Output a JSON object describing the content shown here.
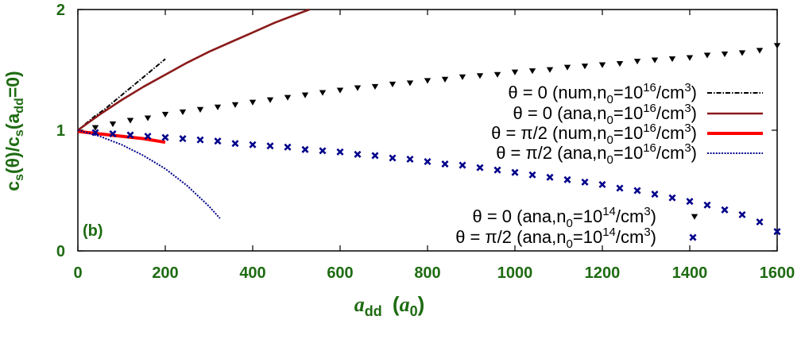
{
  "chart_data": {
    "type": "line",
    "panel_label": "(b)",
    "xlabel": {
      "main": "a",
      "sub": "dd",
      "unit_main": "a",
      "unit_sub": "0"
    },
    "ylabel": {
      "p1": "c",
      "s1": "s",
      "p2": "(θ)/c",
      "s2": "s",
      "p3": "(a",
      "s3": "dd",
      "p4": "=0)"
    },
    "xlim": [
      0,
      1600
    ],
    "ylim": [
      0,
      2
    ],
    "xticks": [
      0,
      200,
      400,
      600,
      800,
      1000,
      1200,
      1400,
      1600
    ],
    "yticks": [
      0,
      1,
      2
    ],
    "series": [
      {
        "name": "θ = 0 (num,n₀=10¹⁶/cm³)",
        "legend": {
          "pre": "θ = 0 (num,n",
          "sub": "0",
          "mid": "=10",
          "sup1": "16",
          "post": "/cm",
          "sup2": "3",
          "post2": ")"
        },
        "style": "dashdot",
        "color": "#000000",
        "x": [
          0,
          20,
          40,
          60,
          80,
          100,
          120,
          140,
          160,
          180,
          200
        ],
        "y": [
          1.0,
          1.06,
          1.12,
          1.17,
          1.23,
          1.29,
          1.35,
          1.41,
          1.47,
          1.53,
          1.59
        ]
      },
      {
        "name": "θ = 0 (ana,n₀=10¹⁶/cm³)",
        "legend": {
          "pre": "θ = 0 (ana,n",
          "sub": "0",
          "mid": "=10",
          "sup1": "16",
          "post": "/cm",
          "sup2": "3",
          "post2": ")"
        },
        "style": "solid",
        "color": "#8b1a1a",
        "x": [
          0,
          50,
          100,
          150,
          200,
          250,
          300,
          350,
          400,
          450,
          500,
          530
        ],
        "y": [
          1.0,
          1.13,
          1.25,
          1.36,
          1.46,
          1.56,
          1.65,
          1.73,
          1.81,
          1.89,
          1.96,
          2.0
        ]
      },
      {
        "name": "θ = π/2 (num,n₀=10¹⁶/cm³)",
        "legend": {
          "pre": "θ = π/2 (num,n",
          "sub": "0",
          "mid": "=10",
          "sup1": "16",
          "post": "/cm",
          "sup2": "3",
          "post2": ")"
        },
        "style": "thick",
        "color": "#ff0000",
        "x": [
          0,
          50,
          100,
          150,
          200
        ],
        "y": [
          0.99,
          0.97,
          0.95,
          0.93,
          0.9
        ]
      },
      {
        "name": "θ = π/2 (ana,n₀=10¹⁶/cm³)",
        "legend": {
          "pre": "θ = π/2 (ana,n",
          "sub": "0",
          "mid": "=10",
          "sup1": "16",
          "post": "/cm",
          "sup2": "3",
          "post2": ")"
        },
        "style": "dotted",
        "color": "#00008b",
        "x": [
          0,
          50,
          100,
          150,
          200,
          250,
          300,
          325
        ],
        "y": [
          1.0,
          0.95,
          0.88,
          0.79,
          0.68,
          0.54,
          0.37,
          0.27
        ]
      },
      {
        "name": "θ = 0 (ana,n₀=10¹⁴/cm³)",
        "legend": {
          "pre": "θ = 0 (ana,n",
          "sub": "0",
          "mid": "=10",
          "sup1": "14",
          "post": "/cm",
          "sup2": "3",
          "post2": ")"
        },
        "style": "triangles",
        "color": "#000000",
        "x": [
          40,
          80,
          120,
          160,
          200,
          240,
          280,
          320,
          360,
          400,
          440,
          480,
          520,
          560,
          600,
          640,
          680,
          720,
          760,
          800,
          840,
          880,
          920,
          960,
          1000,
          1040,
          1080,
          1120,
          1160,
          1200,
          1240,
          1280,
          1320,
          1360,
          1400,
          1440,
          1480,
          1520,
          1560,
          1600
        ],
        "y": [
          1.02,
          1.05,
          1.08,
          1.1,
          1.13,
          1.15,
          1.17,
          1.19,
          1.21,
          1.23,
          1.25,
          1.27,
          1.29,
          1.31,
          1.33,
          1.35,
          1.36,
          1.38,
          1.39,
          1.41,
          1.42,
          1.44,
          1.45,
          1.46,
          1.48,
          1.49,
          1.5,
          1.52,
          1.53,
          1.54,
          1.55,
          1.57,
          1.58,
          1.59,
          1.6,
          1.62,
          1.63,
          1.64,
          1.66,
          1.7
        ]
      },
      {
        "name": "θ = π/2 (ana,n₀=10¹⁴/cm³)",
        "legend": {
          "pre": "θ = π/2 (ana,n",
          "sub": "0",
          "mid": "=10",
          "sup1": "14",
          "post": "/cm",
          "sup2": "3",
          "post2": ")"
        },
        "style": "crosses",
        "color": "#00008b",
        "x": [
          40,
          80,
          120,
          160,
          200,
          240,
          280,
          320,
          360,
          400,
          440,
          480,
          520,
          560,
          600,
          640,
          680,
          720,
          760,
          800,
          840,
          880,
          920,
          960,
          1000,
          1040,
          1080,
          1120,
          1160,
          1200,
          1240,
          1280,
          1320,
          1360,
          1400,
          1440,
          1480,
          1520,
          1560,
          1600
        ],
        "y": [
          0.98,
          0.97,
          0.96,
          0.95,
          0.94,
          0.93,
          0.92,
          0.91,
          0.89,
          0.88,
          0.87,
          0.86,
          0.84,
          0.83,
          0.82,
          0.8,
          0.79,
          0.77,
          0.76,
          0.74,
          0.72,
          0.71,
          0.69,
          0.67,
          0.65,
          0.63,
          0.61,
          0.59,
          0.57,
          0.55,
          0.52,
          0.5,
          0.47,
          0.44,
          0.41,
          0.38,
          0.34,
          0.3,
          0.24,
          0.16
        ]
      }
    ]
  }
}
